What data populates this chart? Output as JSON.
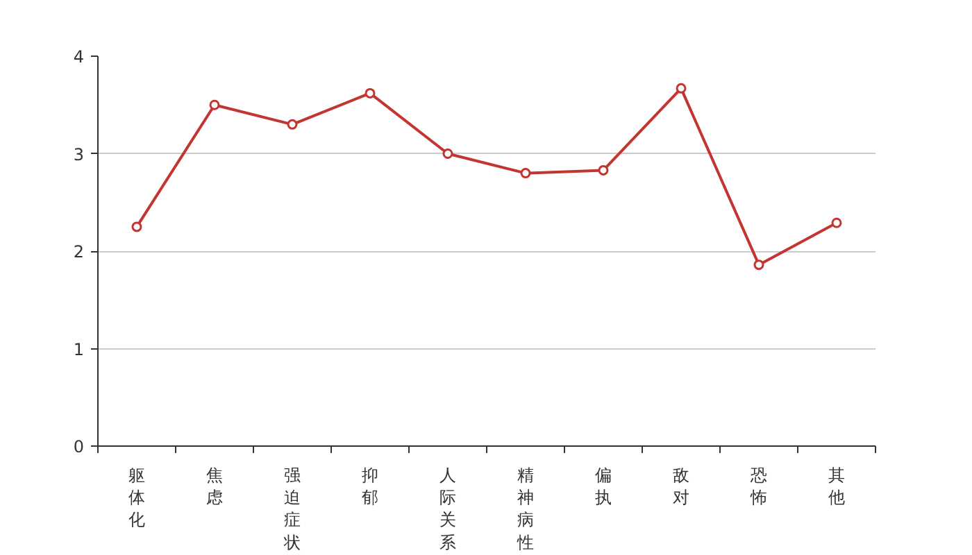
{
  "chart_data": {
    "type": "line",
    "categories": [
      "躯体化",
      "焦虑",
      "强迫症状",
      "抑郁",
      "人际关系",
      "精神病性",
      "偏执",
      "敌对",
      "恐怖",
      "其他"
    ],
    "series": [
      {
        "color": "#c23531",
        "values": [
          2.25,
          3.5,
          3.3,
          3.62,
          3.0,
          2.8,
          2.83,
          3.67,
          1.86,
          2.29
        ]
      }
    ],
    "ylim": [
      0,
      4
    ],
    "yticks": [
      0,
      1,
      2,
      3,
      4
    ],
    "grid": "y",
    "marker": "circle",
    "line_style": "solid"
  }
}
